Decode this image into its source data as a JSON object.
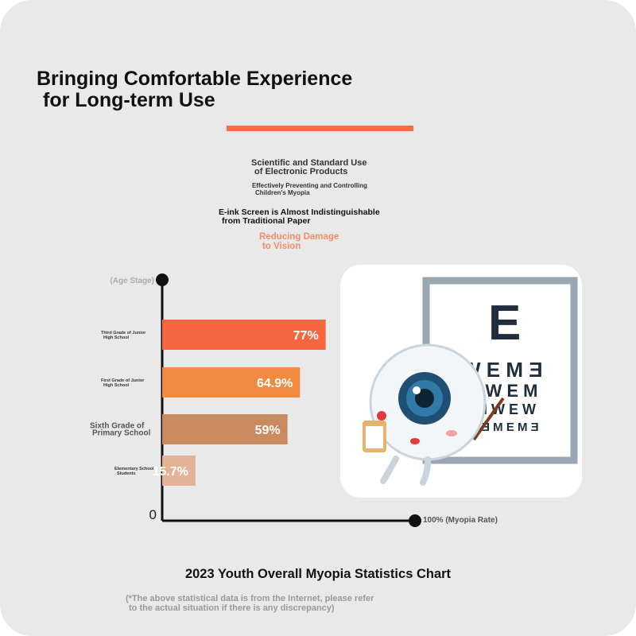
{
  "header": {
    "title_line1": "Bringing Comfortable Experience",
    "title_line2": "for Long-term Use"
  },
  "features": {
    "item1_line1": "Scientific and Standard Use",
    "item1_line2": "of Electronic Products",
    "item2_line1": "Effectively Preventing and Controlling",
    "item2_line2": "Children's Myopia",
    "item3_line1": "E-ink Screen is Almost Indistinguishable",
    "item3_line2": "from Traditional Paper",
    "item4_line1": "Reducing Damage",
    "item4_line2": "to Vision"
  },
  "colors": {
    "accent": "#f56e45",
    "highlight_text": "#f78b68",
    "bar1": "#f7673f",
    "bar2": "#f28b3f",
    "bar3": "#c98a5f",
    "bar4": "#e4b397"
  },
  "chart_data": {
    "type": "bar",
    "orientation": "horizontal",
    "title": "2023 Youth Overall Myopia Statistics Chart",
    "ylabel": "(Age Stage)",
    "xlabel": "100% (Myopia Rate)",
    "x_origin_label": "0",
    "xlim": [
      0,
      100
    ],
    "categories": [
      [
        "Third Grade of Junior",
        "High School"
      ],
      [
        "First Grade of Junior",
        "High School"
      ],
      [
        "Sixth Grade of",
        "Primary School"
      ],
      [
        "Elementary School",
        "Students"
      ]
    ],
    "values": [
      77,
      64.9,
      59,
      15.7
    ],
    "value_labels": [
      "77%",
      "64.9%",
      "59%",
      "15.7%"
    ]
  },
  "footer": {
    "chart_title": "2023 Youth Overall Myopia Statistics Chart",
    "disclaimer_line1": "(*The above statistical data is from the Internet, please refer",
    "disclaimer_line2": "to the actual situation if there is any discrepancy)"
  },
  "illustration": {
    "eye_chart_rows": [
      "E",
      "W E M Ǝ",
      "M W E M",
      "M W E W",
      "Ǝ M E M Ǝ"
    ]
  }
}
